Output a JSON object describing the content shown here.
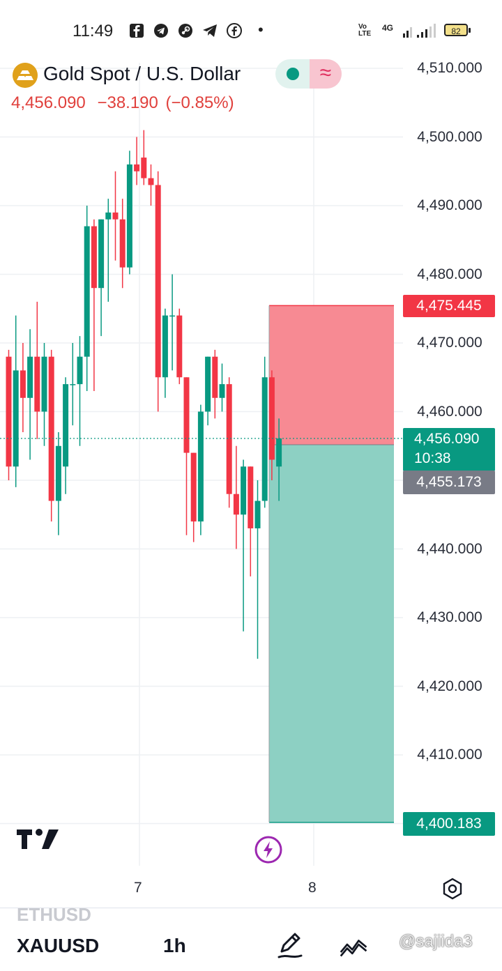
{
  "status": {
    "time": "11:49",
    "network": "4G",
    "volte": "Vo LTE",
    "battery": "82",
    "dot": "•",
    "icons": [
      "facebook-icon",
      "telegram-icon",
      "steam-icon",
      "telegram-icon",
      "facebook-circle-icon"
    ]
  },
  "header": {
    "title": "Gold Spot / U.S. Dollar",
    "last": "4,456.090",
    "change": "−38.190",
    "change_pct": "(−0.85%)",
    "wave_glyph": "≈"
  },
  "price_axis": [
    "4,510.000",
    "4,500.000",
    "4,490.000",
    "4,480.000",
    "4,470.000",
    "4,460.000",
    "4,440.000",
    "4,430.000",
    "4,420.000",
    "4,410.000"
  ],
  "badges": {
    "stop": "4,475.445",
    "current_price": "4,456.090",
    "countdown": "10:38",
    "entry": "4,455.173",
    "target": "4,400.183"
  },
  "x_axis": {
    "labels": [
      "7",
      "8"
    ]
  },
  "bottom": {
    "ghost_symbol": "ETHUSD",
    "symbol": "XAUUSD",
    "interval": "1h",
    "watermark": "@sajiida3"
  },
  "colors": {
    "up": "#089981",
    "down": "#f23645",
    "stop_zone": "#f78a93",
    "target_zone": "#8dd0c3",
    "grid": "#eef0f3"
  },
  "chart_data": {
    "type": "candlestick",
    "timeframe": "1h",
    "symbol": "XAUUSD",
    "ylim": [
      4400,
      4512
    ],
    "yticks": [
      4410,
      4420,
      4430,
      4440,
      4460,
      4470,
      4480,
      4490,
      4500,
      4510
    ],
    "x_day_labels": [
      {
        "label": "7",
        "index": 19.5
      },
      {
        "label": "8",
        "index": 45
      }
    ],
    "candles": [
      {
        "o": 4468,
        "h": 4469,
        "l": 4450,
        "c": 4452
      },
      {
        "o": 4452,
        "h": 4474,
        "l": 4449,
        "c": 4466
      },
      {
        "o": 4466,
        "h": 4470,
        "l": 4457,
        "c": 4462
      },
      {
        "o": 4462,
        "h": 4472,
        "l": 4453,
        "c": 4468
      },
      {
        "o": 4468,
        "h": 4476,
        "l": 4456,
        "c": 4460
      },
      {
        "o": 4460,
        "h": 4470,
        "l": 4455,
        "c": 4468
      },
      {
        "o": 4468,
        "h": 4469,
        "l": 4444,
        "c": 4447
      },
      {
        "o": 4447,
        "h": 4457,
        "l": 4442,
        "c": 4455
      },
      {
        "o": 4452,
        "h": 4465,
        "l": 4448,
        "c": 4464
      },
      {
        "o": 4464,
        "h": 4470,
        "l": 4458,
        "c": 4464
      },
      {
        "o": 4464,
        "h": 4471,
        "l": 4455,
        "c": 4468
      },
      {
        "o": 4468,
        "h": 4490,
        "l": 4463,
        "c": 4487
      },
      {
        "o": 4487,
        "h": 4488,
        "l": 4463,
        "c": 4478
      },
      {
        "o": 4478,
        "h": 4488,
        "l": 4471,
        "c": 4488
      },
      {
        "o": 4488,
        "h": 4491,
        "l": 4476,
        "c": 4489
      },
      {
        "o": 4489,
        "h": 4495,
        "l": 4482,
        "c": 4488
      },
      {
        "o": 4488,
        "h": 4491,
        "l": 4478,
        "c": 4481
      },
      {
        "o": 4481,
        "h": 4498,
        "l": 4480,
        "c": 4496
      },
      {
        "o": 4496,
        "h": 4500,
        "l": 4493,
        "c": 4495
      },
      {
        "o": 4497,
        "h": 4501,
        "l": 4493,
        "c": 4494
      },
      {
        "o": 4494,
        "h": 4496,
        "l": 4490,
        "c": 4493
      },
      {
        "o": 4493,
        "h": 4495,
        "l": 4460,
        "c": 4465
      },
      {
        "o": 4465,
        "h": 4475,
        "l": 4462,
        "c": 4474
      },
      {
        "o": 4474,
        "h": 4480,
        "l": 4466,
        "c": 4474
      },
      {
        "o": 4474,
        "h": 4475,
        "l": 4464,
        "c": 4465
      },
      {
        "o": 4465,
        "h": 4465,
        "l": 4442,
        "c": 4454
      },
      {
        "o": 4454,
        "h": 4454,
        "l": 4441,
        "c": 4444
      },
      {
        "o": 4444,
        "h": 4461,
        "l": 4442,
        "c": 4460
      },
      {
        "o": 4460,
        "h": 4468,
        "l": 4458,
        "c": 4468
      },
      {
        "o": 4468,
        "h": 4469,
        "l": 4459,
        "c": 4462
      },
      {
        "o": 4462,
        "h": 4467,
        "l": 4460,
        "c": 4464
      },
      {
        "o": 4464,
        "h": 4465,
        "l": 4446,
        "c": 4448
      },
      {
        "o": 4448,
        "h": 4455,
        "l": 4440,
        "c": 4445
      },
      {
        "o": 4445,
        "h": 4453,
        "l": 4428,
        "c": 4452
      },
      {
        "o": 4452,
        "h": 4452,
        "l": 4436,
        "c": 4443
      },
      {
        "o": 4443,
        "h": 4450,
        "l": 4424,
        "c": 4447
      },
      {
        "o": 4447,
        "h": 4468,
        "l": 4446,
        "c": 4465
      },
      {
        "o": 4465,
        "h": 4466,
        "l": 4450,
        "c": 4453
      },
      {
        "o": 4452,
        "h": 4459,
        "l": 4447,
        "c": 4456.09
      }
    ],
    "position": {
      "type": "short",
      "entry": 4455.173,
      "stop": 4475.445,
      "target": 4400.183,
      "start_index": 38
    },
    "current_price": 4456.09
  }
}
